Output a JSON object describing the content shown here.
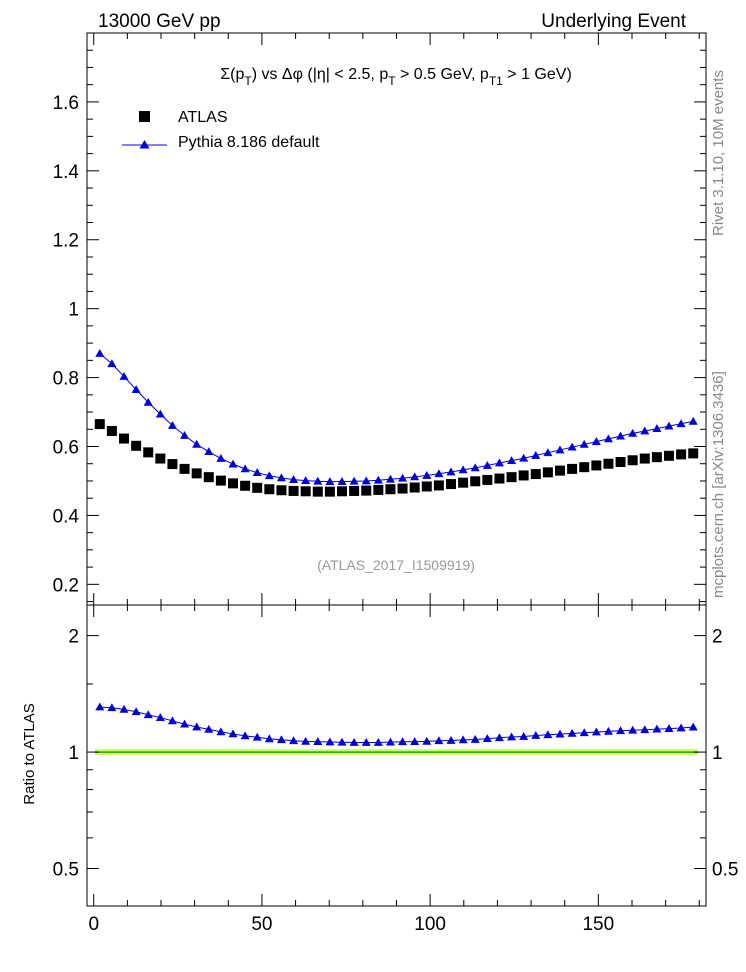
{
  "header": {
    "left": "13000 GeV pp",
    "right": "Underlying Event"
  },
  "side_labels": {
    "rivet": "Rivet 3.1.10, 10M events",
    "mcplots": "mcplots.cern.ch [arXiv:1306.3436]"
  },
  "chart_data": [
    {
      "type": "scatter",
      "title": "Σ(pT) vs Δφ (|η| < 2.5, pT > 0.5 GeV, pT1 > 1 GeV)",
      "title_parts": {
        "t1": "Σ(p",
        "t2": "T",
        "t3": ") vs Δφ (|η| < 2.5, p",
        "t4": "T",
        "t5": " > 0.5 GeV, p",
        "t6": "T1",
        "t7": " > 1 GeV)"
      },
      "watermark": "(ATLAS_2017_I1509919)",
      "xlim": [
        -2,
        182
      ],
      "ylim": [
        0.14,
        1.8
      ],
      "yticks": [
        0.2,
        0.4,
        0.6,
        0.8,
        1,
        1.2,
        1.4,
        1.6
      ],
      "ytick_labels": [
        "0.2",
        "0.4",
        "0.6",
        "0.8",
        "1",
        "1.2",
        "1.4",
        "1.6"
      ],
      "legend_position": "top-left",
      "x": [
        1.8,
        5.4,
        9.0,
        12.6,
        16.2,
        19.8,
        23.4,
        27.0,
        30.6,
        34.2,
        37.8,
        41.4,
        45.0,
        48.6,
        52.2,
        55.8,
        59.4,
        63.0,
        66.6,
        70.2,
        73.8,
        77.4,
        81.0,
        84.6,
        88.2,
        91.8,
        95.4,
        99.0,
        102.6,
        106.2,
        109.8,
        113.4,
        117.0,
        120.6,
        124.2,
        127.8,
        131.4,
        135.0,
        138.6,
        142.2,
        145.8,
        149.4,
        153.0,
        156.6,
        160.2,
        163.8,
        167.4,
        171.0,
        174.6,
        178.2
      ],
      "series": [
        {
          "name": "ATLAS",
          "marker": "square",
          "color": "#000000",
          "values": [
            0.665,
            0.645,
            0.623,
            0.602,
            0.583,
            0.565,
            0.549,
            0.535,
            0.522,
            0.511,
            0.501,
            0.493,
            0.486,
            0.48,
            0.476,
            0.473,
            0.471,
            0.47,
            0.469,
            0.469,
            0.47,
            0.471,
            0.472,
            0.474,
            0.476,
            0.478,
            0.481,
            0.484,
            0.487,
            0.491,
            0.495,
            0.499,
            0.503,
            0.507,
            0.511,
            0.516,
            0.52,
            0.525,
            0.53,
            0.535,
            0.54,
            0.545,
            0.55,
            0.555,
            0.56,
            0.565,
            0.569,
            0.573,
            0.577,
            0.58
          ]
        },
        {
          "name": "Pythia 8.186 default",
          "marker": "triangle",
          "color": "#0000dd",
          "values": [
            0.87,
            0.84,
            0.803,
            0.765,
            0.728,
            0.694,
            0.661,
            0.632,
            0.606,
            0.585,
            0.565,
            0.549,
            0.535,
            0.524,
            0.515,
            0.509,
            0.504,
            0.501,
            0.499,
            0.498,
            0.498,
            0.499,
            0.5,
            0.502,
            0.505,
            0.508,
            0.512,
            0.516,
            0.521,
            0.526,
            0.532,
            0.538,
            0.545,
            0.552,
            0.559,
            0.566,
            0.574,
            0.582,
            0.59,
            0.598,
            0.606,
            0.614,
            0.622,
            0.63,
            0.638,
            0.645,
            0.652,
            0.659,
            0.666,
            0.673
          ]
        }
      ]
    },
    {
      "type": "scatter",
      "ylabel": "Ratio to ATLAS",
      "xlim": [
        -2,
        182
      ],
      "ylim": [
        0.4,
        2.4
      ],
      "log_y": true,
      "yticks": [
        0.5,
        1,
        2
      ],
      "ytick_labels": [
        "0.5",
        "1",
        "2"
      ],
      "xticks": [
        0,
        50,
        100,
        150
      ],
      "xtick_labels": [
        "0",
        "50",
        "100",
        "150"
      ],
      "reference": {
        "value": 1,
        "line_color": "#22aa00",
        "band_color": "#ccff66"
      },
      "series": [
        {
          "name": "Pythia 8.186 default",
          "marker": "triangle",
          "color": "#0000dd",
          "values": [
            1.308,
            1.302,
            1.289,
            1.271,
            1.249,
            1.228,
            1.204,
            1.181,
            1.161,
            1.145,
            1.128,
            1.114,
            1.101,
            1.092,
            1.082,
            1.076,
            1.07,
            1.066,
            1.064,
            1.062,
            1.06,
            1.059,
            1.059,
            1.059,
            1.061,
            1.063,
            1.064,
            1.066,
            1.07,
            1.071,
            1.075,
            1.078,
            1.083,
            1.089,
            1.094,
            1.097,
            1.104,
            1.109,
            1.113,
            1.118,
            1.122,
            1.127,
            1.131,
            1.135,
            1.139,
            1.142,
            1.146,
            1.15,
            1.154,
            1.16
          ]
        }
      ]
    }
  ]
}
